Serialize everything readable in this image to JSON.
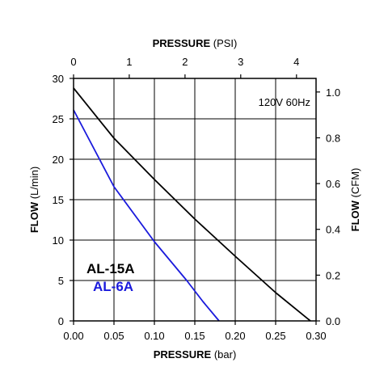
{
  "chart_data": {
    "type": "line",
    "xlabel": {
      "text": "PRESSURE",
      "unit": "(bar)"
    },
    "x2label": {
      "text": "PRESSURE",
      "unit": "(PSI)"
    },
    "ylabel": {
      "text": "FLOW",
      "unit": "(L/min)"
    },
    "y2label": {
      "text": "FLOW",
      "unit": "(CFM)"
    },
    "xlim": [
      0,
      0.3
    ],
    "ylim": [
      0,
      30
    ],
    "x_ticks": [
      "0.00",
      "0.05",
      "0.10",
      "0.15",
      "0.20",
      "0.25",
      "0.30"
    ],
    "y_ticks": [
      "0",
      "5",
      "10",
      "15",
      "20",
      "25",
      "30"
    ],
    "x2_ticks": [
      {
        "label": "0",
        "value": 0
      },
      {
        "label": "1",
        "value": 0.0689
      },
      {
        "label": "2",
        "value": 0.1379
      },
      {
        "label": "3",
        "value": 0.2068
      },
      {
        "label": "4",
        "value": 0.2758
      }
    ],
    "y2_ticks": [
      {
        "label": "0.0",
        "value": 0
      },
      {
        "label": "0.2",
        "value": 5.66
      },
      {
        "label": "0.4",
        "value": 11.33
      },
      {
        "label": "0.6",
        "value": 16.99
      },
      {
        "label": "0.8",
        "value": 22.65
      },
      {
        "label": "1.0",
        "value": 28.32
      }
    ],
    "grid": true,
    "annotation": "120V 60Hz",
    "legend_position": "bottom-left",
    "series": [
      {
        "name": "AL-15A",
        "color": "#000000",
        "x": [
          0,
          0.05,
          0.1,
          0.15,
          0.2,
          0.25,
          0.293
        ],
        "y": [
          28.8,
          22.6,
          17.5,
          12.6,
          8.0,
          3.5,
          0
        ]
      },
      {
        "name": "AL-6A",
        "color": "#1a1adc",
        "x": [
          0,
          0.02,
          0.05,
          0.1,
          0.14,
          0.16,
          0.18
        ],
        "y": [
          26.1,
          22.3,
          16.6,
          9.8,
          5.0,
          2.4,
          0
        ]
      }
    ]
  }
}
